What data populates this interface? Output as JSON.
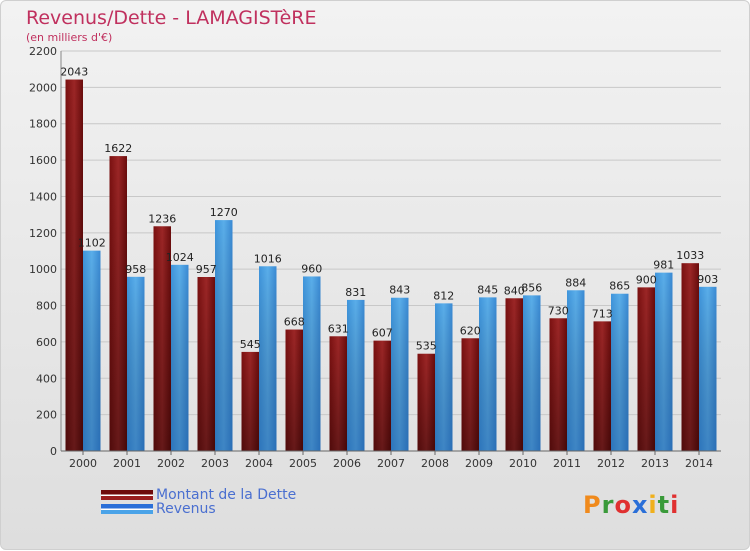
{
  "header": {
    "title": "Revenus/Dette - LAMAGISTèRE",
    "subtitle": "(en milliers d'€)"
  },
  "logo": {
    "text": "Proxiti"
  },
  "legend": {
    "dette_label": "Montant de la Dette",
    "revenus_label": "Revenus"
  },
  "colors": {
    "dette": "#8a1a1a",
    "revenus": "#4a9fe0",
    "title": "#c0305e",
    "legend_text": "#4a6fd0"
  },
  "chart_data": {
    "type": "bar",
    "categories": [
      "2000",
      "2001",
      "2002",
      "2003",
      "2004",
      "2005",
      "2006",
      "2007",
      "2008",
      "2009",
      "2010",
      "2011",
      "2012",
      "2013",
      "2014"
    ],
    "series": [
      {
        "name": "Montant de la Dette",
        "values": [
          2043,
          1622,
          1236,
          957,
          545,
          668,
          631,
          607,
          535,
          620,
          840,
          730,
          713,
          900,
          1033
        ]
      },
      {
        "name": "Revenus",
        "values": [
          1102,
          958,
          1024,
          1270,
          1016,
          960,
          831,
          843,
          812,
          845,
          856,
          884,
          865,
          981,
          903
        ]
      }
    ],
    "ylim": [
      0,
      2200
    ],
    "yticks": [
      0,
      200,
      400,
      600,
      800,
      1000,
      1200,
      1400,
      1600,
      1800,
      2000,
      2200
    ],
    "grid": true
  }
}
